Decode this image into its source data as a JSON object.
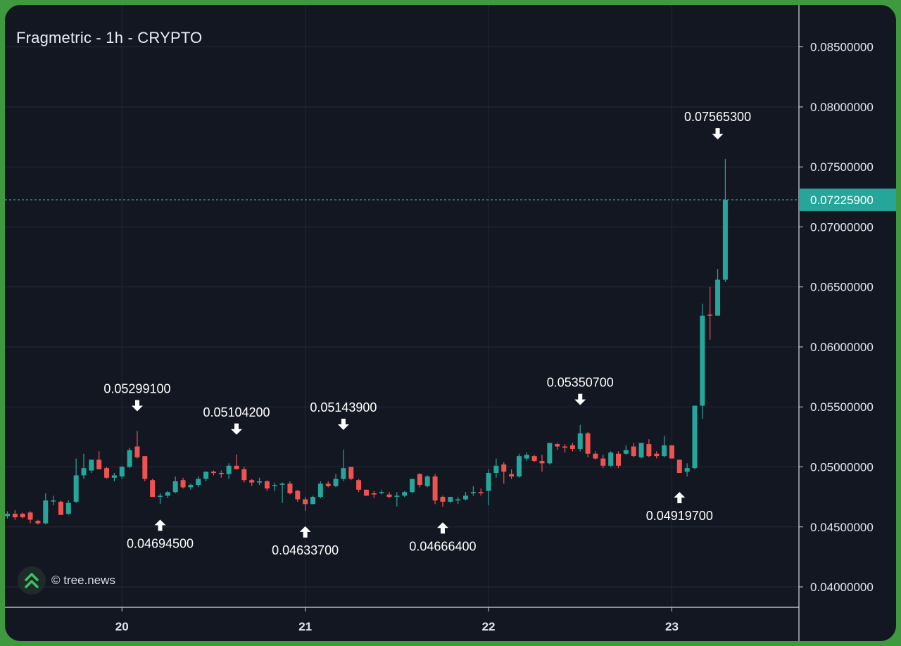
{
  "chart_title": "Fragmetric - 1h - CRYPTO",
  "watermark": {
    "text": "© tree.news",
    "icon": "tree-news-logo-icon"
  },
  "colors": {
    "up": "#26a69a",
    "down": "#ef5350",
    "background": "#131722",
    "grid": "#232838",
    "frame": "#3f9a3f"
  },
  "chart_data": {
    "type": "candlestick",
    "title": "Fragmetric - 1h - CRYPTO",
    "interval": "1h",
    "ylim": [
      0.0383,
      0.0885
    ],
    "y_ticks": [
      "0.08500000",
      "0.08000000",
      "0.07500000",
      "0.07000000",
      "0.06500000",
      "0.06000000",
      "0.05500000",
      "0.05000000",
      "0.04500000",
      "0.04000000"
    ],
    "y_tick_values": [
      0.085,
      0.08,
      0.075,
      0.07,
      0.065,
      0.06,
      0.055,
      0.05,
      0.045,
      0.04
    ],
    "x_ticks": [
      {
        "label": "20",
        "index": 15
      },
      {
        "label": "21",
        "index": 39
      },
      {
        "label": "22",
        "index": 63
      },
      {
        "label": "23",
        "index": 87
      }
    ],
    "last_price": {
      "value": 0.072259,
      "label": "0.07225900"
    },
    "candles": [
      [
        0.0459,
        0.0463,
        0.0457,
        0.0461
      ],
      [
        0.0461,
        0.0464,
        0.0456,
        0.0458
      ],
      [
        0.0461,
        0.0462,
        0.0457,
        0.0458
      ],
      [
        0.0462,
        0.0463,
        0.0453,
        0.0456
      ],
      [
        0.0455,
        0.0456,
        0.0452,
        0.0453
      ],
      [
        0.0453,
        0.0478,
        0.0452,
        0.0472
      ],
      [
        0.0472,
        0.0476,
        0.0468,
        0.0472
      ],
      [
        0.0471,
        0.0472,
        0.046,
        0.046
      ],
      [
        0.0461,
        0.0472,
        0.046,
        0.047
      ],
      [
        0.0471,
        0.0507,
        0.047,
        0.0493
      ],
      [
        0.0493,
        0.0511,
        0.049,
        0.0499
      ],
      [
        0.0497,
        0.0506,
        0.0495,
        0.0506
      ],
      [
        0.0506,
        0.0513,
        0.0499,
        0.0498
      ],
      [
        0.0499,
        0.05,
        0.049,
        0.0491
      ],
      [
        0.0491,
        0.0495,
        0.0488,
        0.0493
      ],
      [
        0.0492,
        0.0501,
        0.049,
        0.05
      ],
      [
        0.05,
        0.0516,
        0.0499,
        0.0514
      ],
      [
        0.0517,
        0.05299,
        0.0507,
        0.0508
      ],
      [
        0.0509,
        0.0509,
        0.0488,
        0.049
      ],
      [
        0.0489,
        0.049,
        0.0475,
        0.0475
      ],
      [
        0.0475,
        0.0478,
        0.0469,
        0.0476
      ],
      [
        0.0476,
        0.048,
        0.0474,
        0.0479
      ],
      [
        0.0479,
        0.0492,
        0.0478,
        0.0488
      ],
      [
        0.0489,
        0.0491,
        0.0482,
        0.0483
      ],
      [
        0.0483,
        0.0486,
        0.0481,
        0.0485
      ],
      [
        0.0485,
        0.0492,
        0.0483,
        0.049
      ],
      [
        0.049,
        0.0496,
        0.0488,
        0.0496
      ],
      [
        0.0496,
        0.0497,
        0.0493,
        0.0495
      ],
      [
        0.0495,
        0.0497,
        0.0491,
        0.0494
      ],
      [
        0.0494,
        0.0503,
        0.049,
        0.0501
      ],
      [
        0.0501,
        0.05104,
        0.0498,
        0.0498
      ],
      [
        0.0498,
        0.05,
        0.0487,
        0.0489
      ],
      [
        0.0489,
        0.049,
        0.0484,
        0.0487
      ],
      [
        0.0487,
        0.0491,
        0.0485,
        0.0488
      ],
      [
        0.0488,
        0.0489,
        0.048,
        0.0482
      ],
      [
        0.0485,
        0.0487,
        0.048,
        0.0485
      ],
      [
        0.0486,
        0.0487,
        0.047,
        0.0486
      ],
      [
        0.0486,
        0.0488,
        0.0477,
        0.0478
      ],
      [
        0.048,
        0.0481,
        0.0471,
        0.0473
      ],
      [
        0.0473,
        0.0475,
        0.04634,
        0.0469
      ],
      [
        0.0469,
        0.0476,
        0.0469,
        0.0475
      ],
      [
        0.0475,
        0.0488,
        0.0474,
        0.0486
      ],
      [
        0.0486,
        0.0488,
        0.0483,
        0.0484
      ],
      [
        0.0484,
        0.0494,
        0.0483,
        0.049
      ],
      [
        0.049,
        0.05144,
        0.0488,
        0.0499
      ],
      [
        0.05,
        0.05,
        0.0489,
        0.049
      ],
      [
        0.0489,
        0.049,
        0.0479,
        0.0481
      ],
      [
        0.0481,
        0.0481,
        0.0476,
        0.0476
      ],
      [
        0.0478,
        0.048,
        0.0474,
        0.0477
      ],
      [
        0.0478,
        0.0481,
        0.0477,
        0.0479
      ],
      [
        0.0477,
        0.0479,
        0.0474,
        0.0475
      ],
      [
        0.0476,
        0.0479,
        0.0467,
        0.0476
      ],
      [
        0.0476,
        0.048,
        0.0475,
        0.0479
      ],
      [
        0.0479,
        0.049,
        0.0478,
        0.049
      ],
      [
        0.0494,
        0.0495,
        0.0483,
        0.0485
      ],
      [
        0.0484,
        0.0493,
        0.0483,
        0.0492
      ],
      [
        0.0492,
        0.0494,
        0.0469,
        0.0472
      ],
      [
        0.0475,
        0.0476,
        0.04667,
        0.0471
      ],
      [
        0.0471,
        0.0475,
        0.047,
        0.0475
      ],
      [
        0.0472,
        0.0475,
        0.0469,
        0.0473
      ],
      [
        0.0473,
        0.0479,
        0.0472,
        0.0476
      ],
      [
        0.0478,
        0.0484,
        0.0476,
        0.0479
      ],
      [
        0.0479,
        0.0482,
        0.0476,
        0.0478
      ],
      [
        0.048,
        0.0498,
        0.0468,
        0.0495
      ],
      [
        0.0495,
        0.0507,
        0.0491,
        0.0501
      ],
      [
        0.0502,
        0.0504,
        0.0486,
        0.0496
      ],
      [
        0.0494,
        0.0498,
        0.049,
        0.0492
      ],
      [
        0.0492,
        0.0511,
        0.0491,
        0.0509
      ],
      [
        0.0507,
        0.0512,
        0.0505,
        0.051
      ],
      [
        0.0509,
        0.051,
        0.0504,
        0.0505
      ],
      [
        0.0505,
        0.051,
        0.0496,
        0.0503
      ],
      [
        0.0503,
        0.052,
        0.0502,
        0.052
      ],
      [
        0.0519,
        0.052,
        0.0514,
        0.0517
      ],
      [
        0.0517,
        0.0519,
        0.0512,
        0.0516
      ],
      [
        0.0518,
        0.052,
        0.0513,
        0.0515
      ],
      [
        0.0515,
        0.05351,
        0.0513,
        0.0528
      ],
      [
        0.0528,
        0.0529,
        0.0508,
        0.0511
      ],
      [
        0.0511,
        0.0513,
        0.0506,
        0.0507
      ],
      [
        0.0507,
        0.051,
        0.0499,
        0.0501
      ],
      [
        0.0501,
        0.0513,
        0.05,
        0.0512
      ],
      [
        0.0511,
        0.0513,
        0.0499,
        0.0501
      ],
      [
        0.0511,
        0.0518,
        0.051,
        0.0514
      ],
      [
        0.0517,
        0.052,
        0.0508,
        0.0509
      ],
      [
        0.0508,
        0.052,
        0.0507,
        0.052
      ],
      [
        0.0519,
        0.0523,
        0.0508,
        0.0509
      ],
      [
        0.0511,
        0.0513,
        0.0507,
        0.0509
      ],
      [
        0.0509,
        0.0526,
        0.0508,
        0.0518
      ],
      [
        0.0518,
        0.0518,
        0.0507,
        0.0507
      ],
      [
        0.0506,
        0.0506,
        0.0495,
        0.0495
      ],
      [
        0.0496,
        0.0503,
        0.0492,
        0.0499
      ],
      [
        0.0499,
        0.0551,
        0.0498,
        0.0551
      ],
      [
        0.0551,
        0.0636,
        0.054,
        0.0626
      ],
      [
        0.0627,
        0.065,
        0.0606,
        0.0626
      ],
      [
        0.0626,
        0.0665,
        0.0626,
        0.0656
      ],
      [
        0.0656,
        0.07565,
        0.0654,
        0.07226
      ]
    ],
    "annotations": [
      {
        "label": "0.05299100",
        "index": 17,
        "value": 0.05299,
        "type": "high"
      },
      {
        "label": "0.04694500",
        "index": 20,
        "value": 0.0469,
        "type": "low"
      },
      {
        "label": "0.05104200",
        "index": 30,
        "value": 0.05104,
        "type": "high"
      },
      {
        "label": "0.04633700",
        "index": 39,
        "value": 0.04634,
        "type": "low"
      },
      {
        "label": "0.05143900",
        "index": 44,
        "value": 0.05144,
        "type": "high"
      },
      {
        "label": "0.04666400",
        "index": 57,
        "value": 0.04667,
        "type": "low"
      },
      {
        "label": "0.05350700",
        "index": 75,
        "value": 0.05351,
        "type": "high"
      },
      {
        "label": "0.04919700",
        "index": 88,
        "value": 0.0492,
        "type": "low"
      },
      {
        "label": "0.07565300",
        "index": 93,
        "value": 0.07565,
        "type": "high"
      }
    ]
  }
}
